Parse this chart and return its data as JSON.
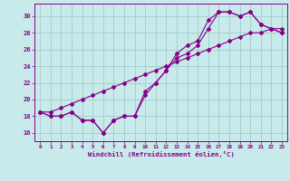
{
  "xlabel": "Windchill (Refroidissement éolien,°C)",
  "background_color": "#c8eaea",
  "grid_color": "#a8d0d0",
  "line_color": "#880088",
  "x_ticks": [
    0,
    1,
    2,
    3,
    4,
    5,
    6,
    7,
    8,
    9,
    10,
    11,
    12,
    13,
    14,
    15,
    16,
    17,
    18,
    19,
    20,
    21,
    22,
    23
  ],
  "y_ticks": [
    16,
    18,
    20,
    22,
    24,
    26,
    28,
    30
  ],
  "ylim": [
    15.0,
    31.5
  ],
  "xlim": [
    -0.5,
    23.5
  ],
  "line1": [
    18.5,
    18.5,
    19.0,
    19.5,
    20.0,
    20.5,
    21.0,
    21.5,
    22.0,
    22.5,
    23.0,
    23.5,
    24.0,
    24.5,
    25.0,
    25.5,
    26.0,
    26.5,
    27.0,
    27.5,
    28.0,
    28.0,
    28.5,
    28.5
  ],
  "line2": [
    18.5,
    18.0,
    18.0,
    18.5,
    17.5,
    17.5,
    16.0,
    17.5,
    18.0,
    18.0,
    21.0,
    22.0,
    23.5,
    25.0,
    25.5,
    26.5,
    28.5,
    30.5,
    30.5,
    30.0,
    30.5,
    29.0,
    28.5,
    28.0
  ],
  "line3": [
    18.5,
    18.0,
    18.0,
    18.5,
    17.5,
    17.5,
    16.0,
    17.5,
    18.0,
    18.0,
    20.5,
    22.0,
    23.5,
    25.5,
    26.5,
    27.0,
    29.5,
    30.5,
    30.5,
    30.0,
    30.5,
    29.0,
    28.5,
    28.0
  ]
}
